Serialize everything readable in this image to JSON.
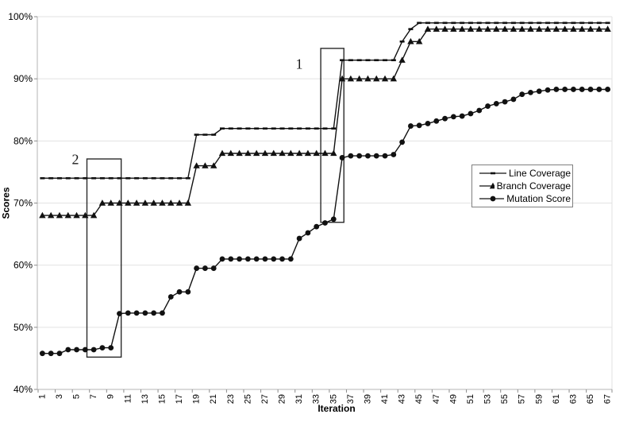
{
  "chart_data": {
    "type": "line",
    "title": "",
    "xlabel": "Iteration",
    "ylabel": "Scores",
    "x_count": 67,
    "x_ticks": [
      1,
      3,
      5,
      7,
      9,
      11,
      13,
      15,
      17,
      19,
      21,
      23,
      25,
      27,
      29,
      31,
      33,
      35,
      37,
      39,
      41,
      43,
      45,
      47,
      49,
      51,
      53,
      55,
      57,
      59,
      61,
      63,
      65,
      67
    ],
    "y_ticks": {
      "values": [
        40,
        50,
        60,
        70,
        80,
        90,
        100
      ],
      "labels": [
        "40%",
        "50%",
        "60%",
        "70%",
        "80%",
        "90%",
        "100%"
      ]
    },
    "ylim": [
      40,
      100
    ],
    "grid": "horizontal",
    "legend_position": "middle-right",
    "series": [
      {
        "name": "Line Coverage",
        "marker": "dash",
        "values": [
          74,
          74,
          74,
          74,
          74,
          74,
          74,
          74,
          74,
          74,
          74,
          74,
          74,
          74,
          74,
          74,
          74,
          74,
          81,
          81,
          81,
          82,
          82,
          82,
          82,
          82,
          82,
          82,
          82,
          82,
          82,
          82,
          82,
          82,
          82,
          93,
          93,
          93,
          93,
          93,
          93,
          93,
          96,
          98,
          99,
          99,
          99,
          99,
          99,
          99,
          99,
          99,
          99,
          99,
          99,
          99,
          99,
          99,
          99,
          99,
          99,
          99,
          99,
          99,
          99,
          99,
          99
        ]
      },
      {
        "name": "Branch Coverage",
        "marker": "triangle",
        "values": [
          68,
          68,
          68,
          68,
          68,
          68,
          68,
          70,
          70,
          70,
          70,
          70,
          70,
          70,
          70,
          70,
          70,
          70,
          76,
          76,
          76,
          78,
          78,
          78,
          78,
          78,
          78,
          78,
          78,
          78,
          78,
          78,
          78,
          78,
          78,
          90,
          90,
          90,
          90,
          90,
          90,
          90,
          93,
          96,
          96,
          98,
          98,
          98,
          98,
          98,
          98,
          98,
          98,
          98,
          98,
          98,
          98,
          98,
          98,
          98,
          98,
          98,
          98,
          98,
          98,
          98,
          98
        ]
      },
      {
        "name": "Mutation Score",
        "marker": "circle",
        "values": [
          45.8,
          45.8,
          45.8,
          46.4,
          46.4,
          46.4,
          46.4,
          46.7,
          46.7,
          52.2,
          52.3,
          52.3,
          52.3,
          52.3,
          52.3,
          54.9,
          55.7,
          55.7,
          59.5,
          59.5,
          59.5,
          61,
          61,
          61,
          61,
          61,
          61,
          61,
          61,
          61,
          64.3,
          65.2,
          66.2,
          66.8,
          67.4,
          77.3,
          77.6,
          77.6,
          77.6,
          77.6,
          77.6,
          77.8,
          79.8,
          82.4,
          82.5,
          82.8,
          83.2,
          83.6,
          83.9,
          84,
          84.4,
          84.9,
          85.6,
          86,
          86.3,
          86.7,
          87.5,
          87.8,
          88,
          88.2,
          88.3,
          88.3,
          88.3,
          88.3,
          88.3,
          88.3,
          88.3
        ]
      }
    ],
    "annotations": [
      {
        "label": "1",
        "iter_range": [
          34.0,
          36.7
        ],
        "value_range": [
          66.9,
          94.9
        ],
        "label_iter": 31.0,
        "label_value": 92.5
      },
      {
        "label": "2",
        "iter_range": [
          6.7,
          10.7
        ],
        "value_range": [
          45.2,
          77.1
        ],
        "label_iter": 4.9,
        "label_value": 77.0
      }
    ],
    "colors": {
      "series": "#111111",
      "grid": "#e2e2e2",
      "axis": "#b5b5b5",
      "tick": "#8c8c8c",
      "annotation_box": "#2a2a2a",
      "background": "#ffffff"
    }
  }
}
